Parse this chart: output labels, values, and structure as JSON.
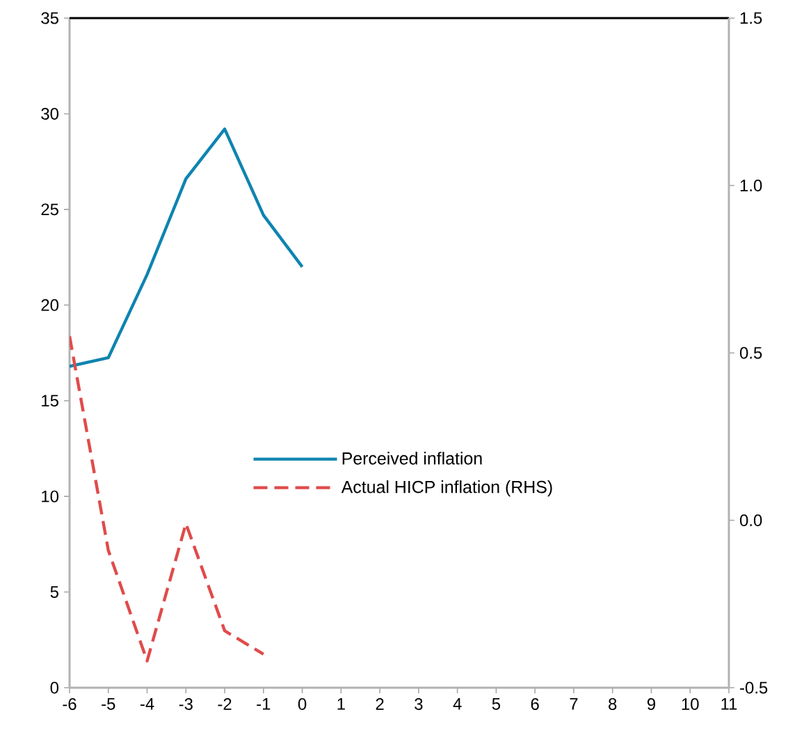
{
  "chart_data": {
    "type": "line",
    "x": [
      -6,
      -5,
      -4,
      -3,
      -2,
      -1,
      0
    ],
    "xlim": [
      -6,
      11
    ],
    "xticks": [
      -6,
      -5,
      -4,
      -3,
      -2,
      -1,
      0,
      1,
      2,
      3,
      4,
      5,
      6,
      7,
      8,
      9,
      10,
      11
    ],
    "ylim": [
      0,
      35
    ],
    "yticks": [
      0,
      5,
      10,
      15,
      20,
      25,
      30,
      35
    ],
    "y2lim": [
      -0.5,
      1.5
    ],
    "y2ticks": [
      {
        "value": -0.5,
        "label": "-0.5"
      },
      {
        "value": 0,
        "label": "0.0"
      },
      {
        "value": 0.5,
        "label": "0.5"
      },
      {
        "value": 1,
        "label": "1.0"
      },
      {
        "value": 1.5,
        "label": "1.5"
      }
    ],
    "legend": "center",
    "grid": false,
    "series": [
      {
        "name": "Perceived inflation",
        "color": "#0e84b0",
        "line_style": "solid",
        "values": [
          16.8,
          17.25,
          21.6,
          26.6,
          29.2,
          24.7,
          22.0
        ]
      },
      {
        "name": "Actual HICP inflation (RHS)",
        "color": "#e04b4b",
        "line_style": "dashed",
        "axis": "y2",
        "x": [
          -6,
          -5,
          -4,
          -3,
          -2,
          -1
        ],
        "values": [
          0.55,
          -0.09,
          -0.42,
          -0.01,
          -0.33,
          -0.4
        ]
      }
    ]
  }
}
